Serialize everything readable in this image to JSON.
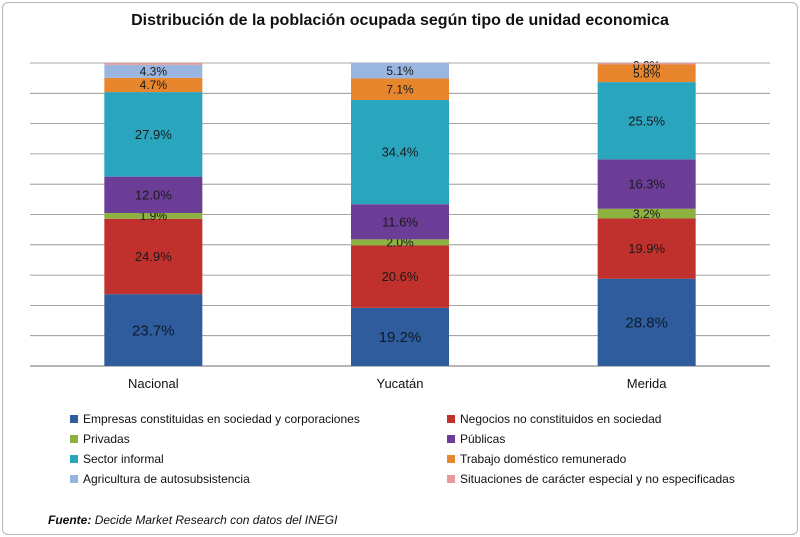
{
  "chart_data": {
    "type": "bar",
    "stacked": true,
    "title": "Distribución de la población ocupada según tipo de unidad economica",
    "categories": [
      "Nacional",
      "Yucatán",
      "Merida"
    ],
    "series": [
      {
        "name": "Empresas constituidas en sociedad y corporaciones",
        "color": "#2e5c9c",
        "values": [
          23.7,
          19.2,
          28.8
        ],
        "labels": [
          "23.7%",
          "19.2%",
          "28.8%"
        ]
      },
      {
        "name": "Negocios no constituidos en sociedad",
        "color": "#c0312d",
        "values": [
          24.9,
          20.6,
          19.9
        ],
        "labels": [
          "24.9%",
          "20.6%",
          "19.9%"
        ]
      },
      {
        "name": "Privadas",
        "color": "#8db241",
        "values": [
          1.9,
          2.0,
          3.2
        ],
        "labels": [
          "1.9%",
          "2.0%",
          "3.2%"
        ]
      },
      {
        "name": "Públicas",
        "color": "#6b3d97",
        "values": [
          12.0,
          11.6,
          16.3
        ],
        "labels": [
          "12.0%",
          "11.6%",
          "16.3%"
        ]
      },
      {
        "name": "Sector informal",
        "color": "#2aa5be",
        "values": [
          27.9,
          34.4,
          25.5
        ],
        "labels": [
          "27.9%",
          "34.4%",
          "25.5%"
        ]
      },
      {
        "name": "Trabajo doméstico remunerado",
        "color": "#e8862d",
        "values": [
          4.7,
          7.1,
          5.8
        ],
        "labels": [
          "4.7%",
          "7.1%",
          "5.8%"
        ]
      },
      {
        "name": "Agricultura de autosubsistencia",
        "color": "#9ab6e0",
        "values": [
          4.3,
          5.1,
          0.0
        ],
        "labels": [
          "4.3%",
          "5.1%",
          "0.0%"
        ]
      },
      {
        "name": "Situaciones de carácter especial y no especificadas",
        "color": "#e79a9a",
        "values": [
          0.6,
          0.0,
          0.5
        ],
        "labels": [
          "",
          "",
          ""
        ]
      }
    ],
    "ylim": [
      0,
      100
    ],
    "grid": true,
    "legend_position": "bottom"
  },
  "source": {
    "label": "Fuente:",
    "text": "Decide Market Research con datos del INEGI"
  }
}
